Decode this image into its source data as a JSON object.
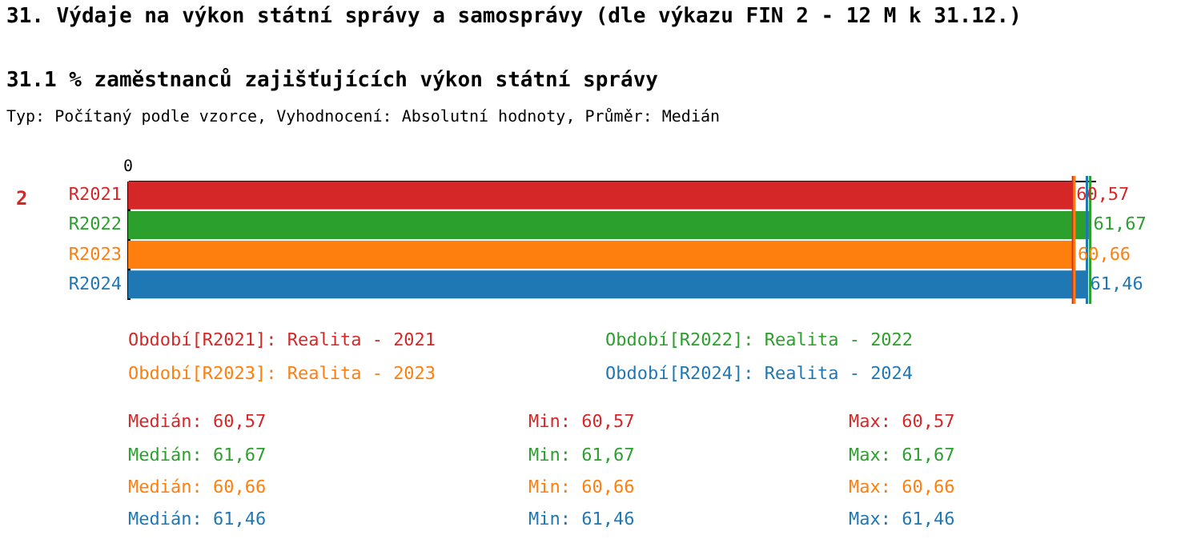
{
  "chart_data": {
    "type": "bar",
    "orientation": "horizontal",
    "title": "31. Výdaje na výkon státní správy a samosprávy (dle výkazu FIN 2 - 12 M k 31.12.)",
    "subtitle": "31.1 % zaměstnanců zajišťujících výkon státní správy",
    "categories": [
      "R2021",
      "R2022",
      "R2023",
      "R2024"
    ],
    "values": [
      60.57,
      61.67,
      60.66,
      61.46
    ],
    "colors": [
      "#d62728",
      "#2ca02c",
      "#ff7f0e",
      "#1f77b4"
    ],
    "value_labels": [
      "60,57",
      "61,67",
      "60,66",
      "61,46"
    ],
    "xlim": [
      0,
      62
    ],
    "ref_lines": [
      {
        "axis": "x",
        "value": 60.57,
        "label": null,
        "color": "#d62728"
      },
      {
        "axis": "x",
        "value": 61.67,
        "label": null,
        "color": "#2ca02c"
      },
      {
        "axis": "x",
        "value": 60.66,
        "label": null,
        "color": "#ff7f0e"
      },
      {
        "axis": "x",
        "value": 61.46,
        "label": null,
        "color": "#1f77b4"
      }
    ],
    "annotations": [
      "Typ: Počítaný podle vzorce, Vyhodnocení: Absolutní hodnoty, Průměr: Medián",
      "2",
      "Období[R2021]: Realita - 2021",
      "Období[R2022]: Realita - 2022",
      "Období[R2023]: Realita - 2023",
      "Období[R2024]: Realita - 2024",
      "Medián: 60,57",
      "Min: 60,57",
      "Max: 60,57",
      "Medián: 61,67",
      "Min: 61,67",
      "Max: 61,67",
      "Medián: 60,66",
      "Min: 60,66",
      "Max: 60,66",
      "Medián: 61,46",
      "Min: 61,46",
      "Max: 61,46",
      "0"
    ]
  }
}
